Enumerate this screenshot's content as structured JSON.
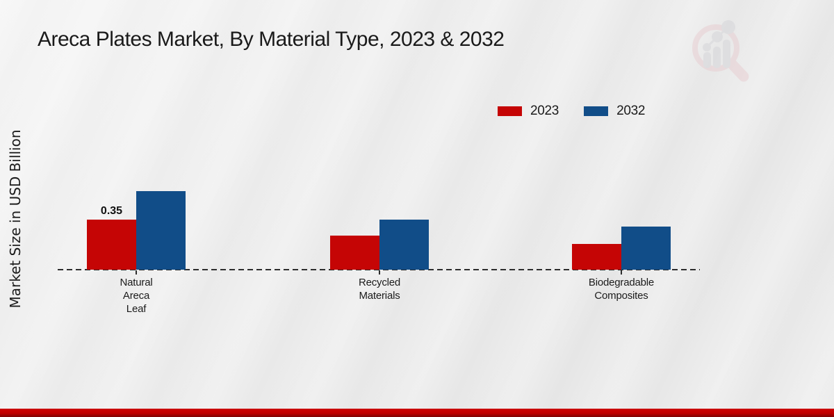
{
  "header": {
    "title": "Areca Plates Market, By Material Type, 2023 & 2032"
  },
  "watermark": {
    "icon": "magnifier-bar-chart-logo"
  },
  "chart_data": {
    "type": "bar",
    "title": "Areca Plates Market, By Material Type, 2023 & 2032",
    "ylabel": "Market Size in USD Billion",
    "xlabel": "",
    "unit": "USD Billion",
    "categories": [
      "Natural Areca Leaf",
      "Recycled Materials",
      "Biodegradable Composites"
    ],
    "categories_multiline": [
      [
        "Natural",
        "Areca",
        "Leaf"
      ],
      [
        "Recycled",
        "Materials"
      ],
      [
        "Biodegradable",
        "Composites"
      ]
    ],
    "series": [
      {
        "name": "2023",
        "color": "#c50505",
        "values": [
          0.35,
          0.24,
          0.18
        ]
      },
      {
        "name": "2032",
        "color": "#114d88",
        "values": [
          0.55,
          0.35,
          0.3
        ]
      }
    ],
    "value_labels": [
      {
        "series_index": 0,
        "category_index": 0,
        "text": "0.35"
      }
    ],
    "ylim": [
      0,
      0.6
    ],
    "grid": false,
    "legend_position": "top-right",
    "baseline_style": "dashed",
    "bottom_accent_color": "#c00000"
  }
}
